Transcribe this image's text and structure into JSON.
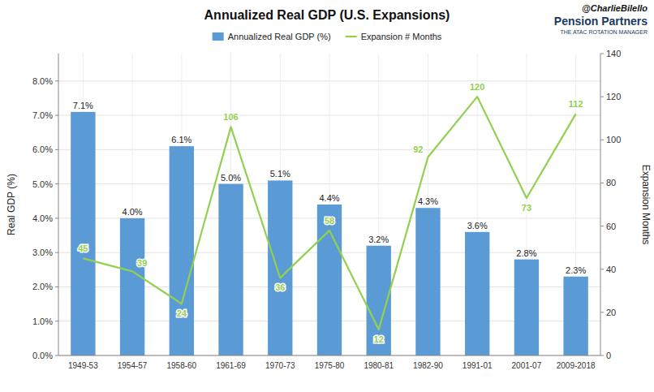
{
  "chart_data": {
    "type": "bar",
    "title": "Annualized Real GDP (U.S. Expansions)",
    "categories": [
      "1949-53",
      "1954-57",
      "1958-60",
      "1961-69",
      "1970-73",
      "1975-80",
      "1980-81",
      "1982-90",
      "1991-01",
      "2001-07",
      "2009-2018"
    ],
    "series": [
      {
        "name": "Annualized Real GDP (%)",
        "type": "bar",
        "color": "#5b9bd5",
        "values": [
          7.1,
          4.0,
          6.1,
          5.0,
          5.1,
          4.4,
          3.2,
          4.3,
          3.6,
          2.8,
          2.3
        ],
        "value_labels": [
          "7.1%",
          "4.0%",
          "6.1%",
          "5.0%",
          "5.1%",
          "4.4%",
          "3.2%",
          "4.3%",
          "3.6%",
          "2.8%",
          "2.3%"
        ]
      },
      {
        "name": "Expansion # Months",
        "type": "line",
        "color": "#92d050",
        "axis": "y2",
        "values": [
          45,
          39,
          24,
          106,
          36,
          58,
          12,
          92,
          120,
          73,
          112
        ]
      }
    ],
    "ylabel": "Real GDP (%)",
    "y2label": "Expansion Months",
    "ylim": [
      0,
      8.8
    ],
    "yticks": [
      {
        "value": 0,
        "label": "0.0%"
      },
      {
        "value": 1,
        "label": "1.0%"
      },
      {
        "value": 2,
        "label": "2.0%"
      },
      {
        "value": 3,
        "label": "3.0%"
      },
      {
        "value": 4,
        "label": "4.0%"
      },
      {
        "value": 5,
        "label": "5.0%"
      },
      {
        "value": 6,
        "label": "6.0%"
      },
      {
        "value": 7,
        "label": "7.0%"
      },
      {
        "value": 8,
        "label": "8.0%"
      }
    ],
    "y2lim": [
      0,
      140
    ],
    "y2ticks": [
      0,
      20,
      40,
      60,
      80,
      100,
      120,
      140
    ],
    "grid": true,
    "legend": "top",
    "data_labels": true,
    "annotations": [
      "@CharlieBilello",
      "Pension Partners",
      "THE ATAC ROTATION MANAGER"
    ]
  }
}
